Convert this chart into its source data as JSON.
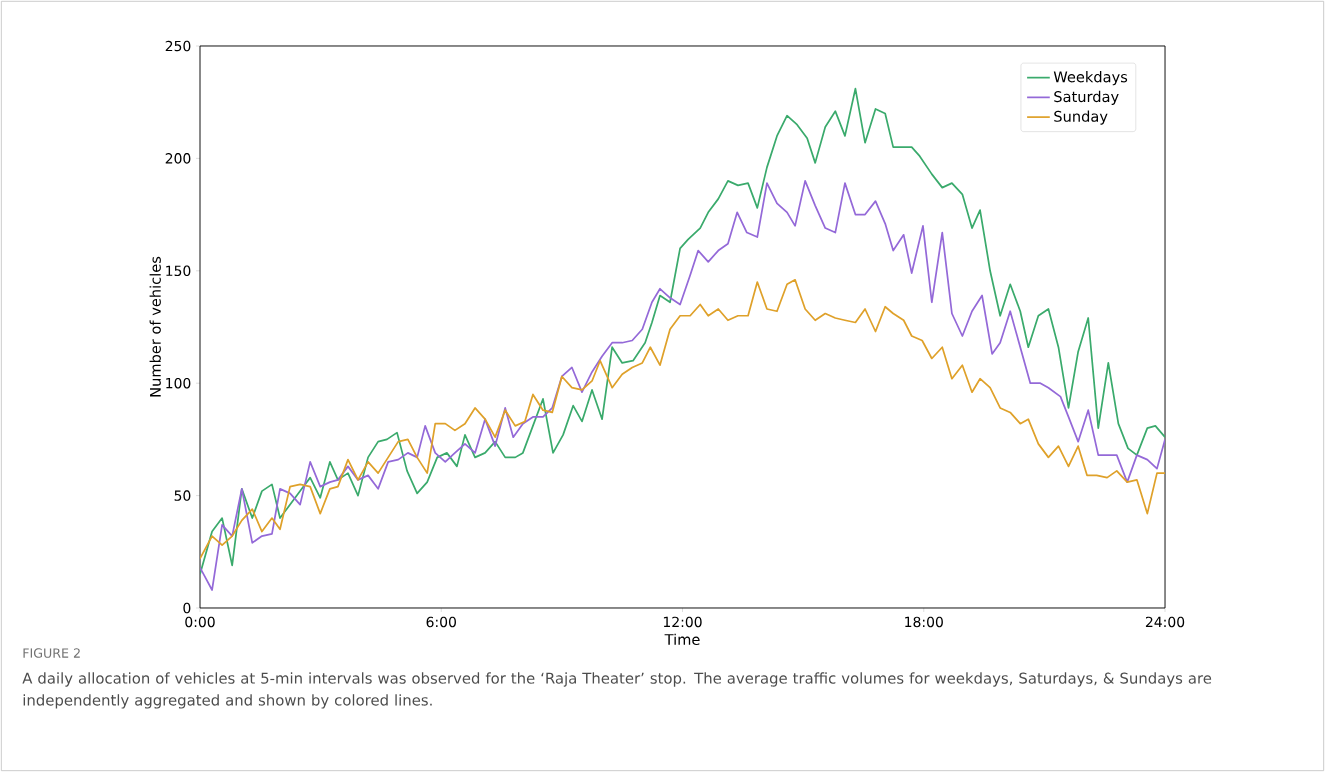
{
  "chart_data": {
    "type": "line",
    "xlabel": "Time",
    "ylabel": "Number of vehicles",
    "annotations": [
      "FIGURE 2",
      "A daily allocation of vehicles at 5-min intervals was observed for the ‘Raja Theater’ stop. The average traffic volumes for weekdays, Saturdays, & Sundays are independently aggregated and shown by colored lines."
    ],
    "xlim": [
      0,
      24
    ],
    "xticks": [
      {
        "value": 0,
        "label": "0:00"
      },
      {
        "value": 6,
        "label": "6:00"
      },
      {
        "value": 12,
        "label": "12:00"
      },
      {
        "value": 18,
        "label": "18:00"
      },
      {
        "value": 24,
        "label": "24:00"
      }
    ],
    "ylim": [
      0,
      250
    ],
    "yticks": [
      0,
      50,
      100,
      150,
      200,
      250
    ],
    "legend": "top right",
    "grid": false,
    "series": [
      {
        "name": "Weekdays",
        "color": "#3aaa6c",
        "x": [
          0,
          0.3,
          0.55,
          0.8,
          1.04,
          1.3,
          1.54,
          1.79,
          1.99,
          2.24,
          2.49,
          2.74,
          2.99,
          3.23,
          3.43,
          3.68,
          3.93,
          4.18,
          4.43,
          4.65,
          4.9,
          5.15,
          5.4,
          5.65,
          5.9,
          6.14,
          6.39,
          6.59,
          6.84,
          7.09,
          7.34,
          7.59,
          7.84,
          8.03,
          8.28,
          8.53,
          8.78,
          9.03,
          9.28,
          9.5,
          9.75,
          10.0,
          10.25,
          10.5,
          10.77,
          11.07,
          11.24,
          11.44,
          11.69,
          11.94,
          12.14,
          12.44,
          12.64,
          12.89,
          13.13,
          13.38,
          13.63,
          13.86,
          14.1,
          14.35,
          14.6,
          14.85,
          15.1,
          15.3,
          15.55,
          15.8,
          16.04,
          16.3,
          16.54,
          16.8,
          17.04,
          17.24,
          17.5,
          17.7,
          17.9,
          18.2,
          18.46,
          18.7,
          18.96,
          19.2,
          19.4,
          19.65,
          19.9,
          20.15,
          20.4,
          20.6,
          20.85,
          21.1,
          21.35,
          21.6,
          21.84,
          22.09,
          22.34,
          22.59,
          22.84,
          23.08,
          23.3,
          23.56,
          23.76,
          24
        ],
        "values": [
          15,
          34,
          40,
          19,
          53,
          40,
          52,
          55,
          40,
          46,
          52,
          58,
          49,
          65,
          57,
          60,
          50,
          67,
          74,
          75,
          78,
          61,
          51,
          56,
          67,
          69,
          63,
          77,
          67,
          69,
          74,
          67,
          67,
          69,
          81,
          93,
          69,
          77,
          90,
          83,
          97,
          84,
          116,
          109,
          110,
          118,
          127,
          139,
          136,
          160,
          164,
          169,
          176,
          182,
          190,
          188,
          189,
          178,
          196,
          210,
          219,
          215,
          209,
          198,
          214,
          221,
          210,
          231,
          207,
          222,
          220,
          205,
          205,
          205,
          201,
          193,
          187,
          189,
          184,
          169,
          177,
          150,
          130,
          144,
          132,
          116,
          130,
          133,
          116,
          89,
          114,
          129,
          80,
          109,
          82,
          71,
          68,
          80,
          81,
          76
        ]
      },
      {
        "name": "Saturday",
        "color": "#9469d8",
        "x": [
          0,
          0.3,
          0.55,
          0.8,
          1.04,
          1.3,
          1.54,
          1.79,
          1.99,
          2.24,
          2.49,
          2.74,
          2.99,
          3.23,
          3.43,
          3.68,
          3.93,
          4.18,
          4.43,
          4.68,
          4.93,
          5.17,
          5.4,
          5.6,
          5.85,
          6.1,
          6.34,
          6.59,
          6.84,
          7.09,
          7.34,
          7.59,
          7.79,
          8.03,
          8.28,
          8.53,
          8.76,
          9.0,
          9.25,
          9.5,
          9.75,
          10.0,
          10.25,
          10.5,
          10.75,
          11.0,
          11.24,
          11.44,
          11.69,
          11.94,
          12.19,
          12.39,
          12.64,
          12.89,
          13.13,
          13.36,
          13.6,
          13.86,
          14.1,
          14.35,
          14.6,
          14.8,
          15.05,
          15.3,
          15.55,
          15.8,
          16.04,
          16.3,
          16.54,
          16.8,
          17.04,
          17.24,
          17.5,
          17.7,
          17.98,
          18.2,
          18.46,
          18.7,
          18.96,
          19.2,
          19.45,
          19.7,
          19.9,
          20.15,
          20.4,
          20.65,
          20.9,
          21.1,
          21.4,
          21.6,
          21.84,
          22.09,
          22.34,
          22.59,
          22.8,
          23.06,
          23.3,
          23.56,
          23.8,
          24
        ],
        "values": [
          18,
          8,
          37,
          32,
          53,
          29,
          32,
          33,
          53,
          51,
          46,
          65,
          54,
          56,
          57,
          63,
          57,
          59,
          53,
          65,
          66,
          69,
          67,
          81,
          69,
          65,
          69,
          73,
          69,
          84,
          72,
          89,
          76,
          82,
          85,
          85,
          89,
          103,
          107,
          96,
          105,
          112,
          118,
          118,
          119,
          124,
          136,
          142,
          138,
          135,
          148,
          159,
          154,
          159,
          162,
          176,
          167,
          165,
          189,
          180,
          176,
          170,
          190,
          179,
          169,
          167,
          189,
          175,
          175,
          181,
          171,
          159,
          166,
          149,
          170,
          136,
          167,
          131,
          121,
          132,
          139,
          113,
          118,
          132,
          116,
          100,
          100,
          98,
          94,
          85,
          74,
          88,
          68,
          68,
          68,
          56,
          68,
          66,
          62,
          75
        ]
      },
      {
        "name": "Sunday",
        "color": "#dfa12a",
        "x": [
          0,
          0.3,
          0.55,
          0.8,
          1.04,
          1.3,
          1.54,
          1.79,
          1.99,
          2.24,
          2.49,
          2.74,
          2.99,
          3.23,
          3.43,
          3.68,
          3.93,
          4.18,
          4.43,
          4.68,
          4.93,
          5.17,
          5.4,
          5.65,
          5.85,
          6.1,
          6.34,
          6.59,
          6.84,
          7.09,
          7.34,
          7.59,
          7.84,
          8.08,
          8.28,
          8.53,
          8.76,
          9.0,
          9.25,
          9.5,
          9.75,
          9.95,
          10.25,
          10.5,
          10.75,
          11.0,
          11.2,
          11.44,
          11.69,
          11.94,
          12.19,
          12.44,
          12.64,
          12.89,
          13.13,
          13.38,
          13.63,
          13.86,
          14.1,
          14.35,
          14.6,
          14.8,
          15.05,
          15.3,
          15.55,
          15.8,
          16.04,
          16.3,
          16.54,
          16.8,
          17.04,
          17.24,
          17.5,
          17.7,
          17.96,
          18.2,
          18.46,
          18.7,
          18.96,
          19.2,
          19.4,
          19.65,
          19.9,
          20.15,
          20.4,
          20.6,
          20.85,
          21.1,
          21.35,
          21.6,
          21.84,
          22.06,
          22.3,
          22.56,
          22.8,
          23.06,
          23.3,
          23.56,
          23.8,
          24
        ],
        "values": [
          22,
          32,
          28,
          32,
          39,
          44,
          34,
          40,
          35,
          54,
          55,
          54,
          42,
          53,
          54,
          66,
          57,
          65,
          60,
          67,
          74,
          75,
          67,
          60,
          82,
          82,
          79,
          82,
          89,
          84,
          76,
          88,
          81,
          83,
          95,
          88,
          87,
          103,
          98,
          97,
          101,
          110,
          98,
          104,
          107,
          109,
          116,
          108,
          124,
          130,
          130,
          135,
          130,
          133,
          128,
          130,
          130,
          145,
          133,
          132,
          144,
          146,
          133,
          128,
          131,
          129,
          128,
          127,
          133,
          123,
          134,
          131,
          128,
          121,
          119,
          111,
          116,
          102,
          108,
          96,
          102,
          98,
          89,
          87,
          82,
          84,
          73,
          67,
          72,
          63,
          72,
          59,
          59,
          58,
          61,
          56,
          57,
          42,
          60,
          60
        ]
      }
    ]
  }
}
